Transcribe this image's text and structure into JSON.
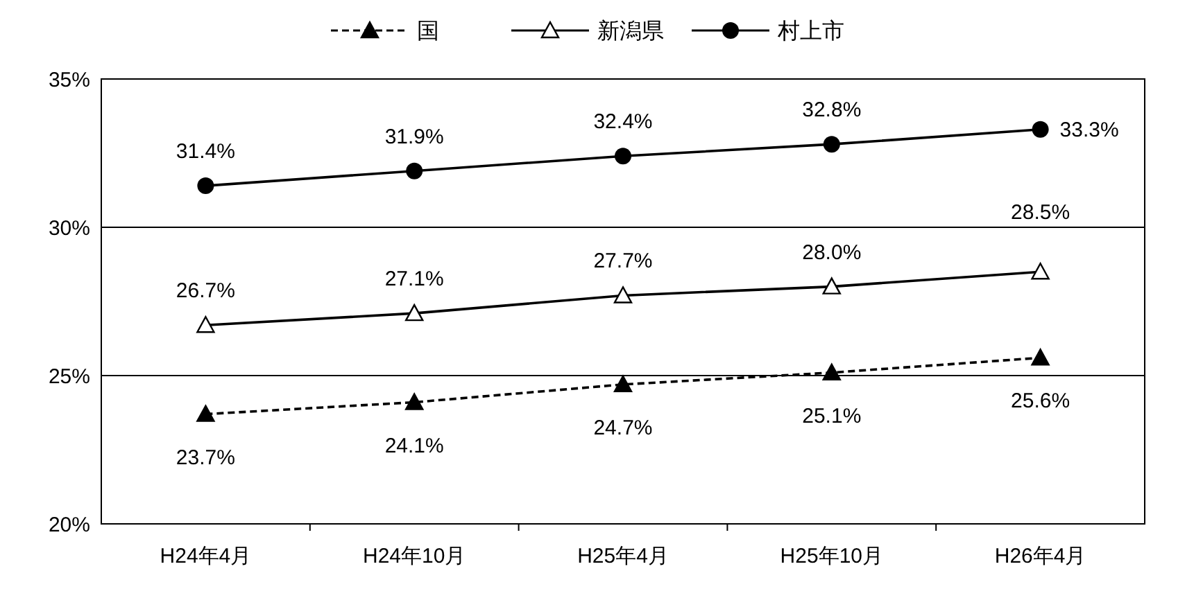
{
  "chart_data": {
    "type": "line",
    "categories": [
      "H24年4月",
      "H24年10月",
      "H25年4月",
      "H25年10月",
      "H26年4月"
    ],
    "series": [
      {
        "name": "国",
        "color": "#000000",
        "marker": "triangle",
        "line_style": "dashed",
        "values": [
          23.7,
          24.1,
          24.7,
          25.1,
          25.6
        ],
        "value_labels": [
          "23.7%",
          "24.1%",
          "24.7%",
          "25.1%",
          "25.6%"
        ]
      },
      {
        "name": "新潟県",
        "color": "#000000",
        "marker": "triangle",
        "line_style": "solid",
        "values": [
          26.7,
          27.1,
          27.7,
          28.0,
          28.5
        ],
        "value_labels": [
          "26.7%",
          "27.1%",
          "27.7%",
          "28.0%",
          "28.5%"
        ]
      },
      {
        "name": "村上市",
        "color": "#000000",
        "marker": "circle",
        "line_style": "solid",
        "values": [
          31.4,
          31.9,
          32.4,
          32.8,
          33.3
        ],
        "value_labels": [
          "31.4%",
          "31.9%",
          "32.4%",
          "32.8%",
          "33.3%"
        ]
      }
    ],
    "ylim": [
      20,
      35
    ],
    "yticks": [
      {
        "value": 20,
        "label": "20%"
      },
      {
        "value": 25,
        "label": "25%"
      },
      {
        "value": 30,
        "label": "30%"
      },
      {
        "value": 35,
        "label": "35%"
      }
    ],
    "grid": "y",
    "legend": "top"
  }
}
